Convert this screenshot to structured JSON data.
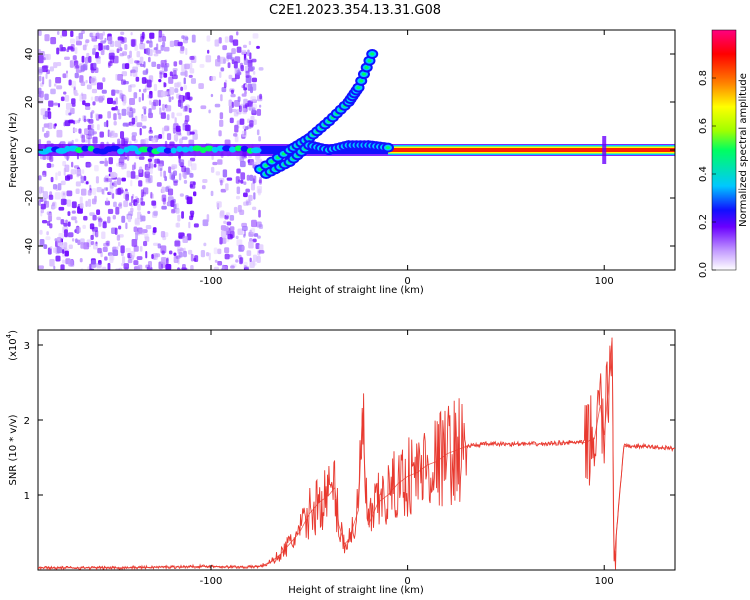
{
  "title": "C2E1.2023.354.13.31.G08",
  "chart_data": [
    {
      "type": "heatmap",
      "xlabel": "Height of straight line (km)",
      "ylabel": "Frequency (Hz)",
      "xlim": [
        -188,
        136
      ],
      "ylim": [
        -50,
        50
      ],
      "x_ticks": [
        -100,
        0,
        100
      ],
      "y_ticks": [
        -40,
        -20,
        0,
        20,
        40
      ],
      "colorbar": {
        "label": "Normalized spectral amplitude",
        "range": [
          0,
          1
        ],
        "ticks": [
          0.0,
          0.2,
          0.4,
          0.6,
          0.8
        ],
        "colors": [
          "#ffffff",
          "#c39bff",
          "#6a00ff",
          "#1010ff",
          "#00c8ff",
          "#00ff60",
          "#a0ff00",
          "#ffff00",
          "#ff8000",
          "#ff0000",
          "#ff0080"
        ]
      },
      "features": {
        "carrier_frequency_hz": 0,
        "noise_region_x": [
          -188,
          -75
        ],
        "bright_line_x": [
          -10,
          136
        ],
        "upper_branch": [
          [
            -75,
            -8
          ],
          [
            -60,
            0
          ],
          [
            -50,
            5
          ],
          [
            -40,
            12
          ],
          [
            -30,
            20
          ],
          [
            -25,
            26
          ],
          [
            -18,
            40
          ]
        ],
        "lower_branch": [
          [
            -72,
            -10
          ],
          [
            -60,
            -5
          ],
          [
            -50,
            2
          ],
          [
            -40,
            0
          ],
          [
            -30,
            2
          ],
          [
            -20,
            2
          ],
          [
            -10,
            1
          ]
        ],
        "spike_x": 100
      }
    },
    {
      "type": "line",
      "xlabel": "Height of straight line (km)",
      "ylabel": "SNR (10 * v/v)",
      "y_scale_label": "(x10",
      "y_scale_exponent": "4",
      "xlim": [
        -188,
        136
      ],
      "ylim": [
        0,
        3.2
      ],
      "x_ticks": [
        -100,
        0,
        100
      ],
      "y_ticks": [
        1,
        2,
        3
      ],
      "color": "#e8392f",
      "series": [
        {
          "x": [
            -188,
            -150,
            -120,
            -100,
            -90,
            -80,
            -75,
            -70,
            -65,
            -60,
            -55,
            -50,
            -45,
            -40,
            -37,
            -35,
            -32,
            -30,
            -25,
            -23,
            -21,
            -20,
            -15,
            -10,
            -5,
            0,
            5,
            10,
            15,
            20,
            25,
            30,
            40,
            50,
            60,
            70,
            80,
            90,
            95,
            98,
            100,
            102,
            104,
            105,
            110,
            120,
            130,
            136
          ],
          "y": [
            0.03,
            0.03,
            0.04,
            0.05,
            0.04,
            0.04,
            0.05,
            0.1,
            0.2,
            0.35,
            0.5,
            0.75,
            0.9,
            1.0,
            1.1,
            0.6,
            0.35,
            0.4,
            0.8,
            2.1,
            0.9,
            0.6,
            0.9,
            1.0,
            1.15,
            1.25,
            1.3,
            1.4,
            1.45,
            1.55,
            1.6,
            1.65,
            1.68,
            1.68,
            1.68,
            1.68,
            1.7,
            1.7,
            1.75,
            2.2,
            1.8,
            2.4,
            3.1,
            0.15,
            1.65,
            1.65,
            1.63,
            1.62
          ]
        }
      ]
    }
  ]
}
